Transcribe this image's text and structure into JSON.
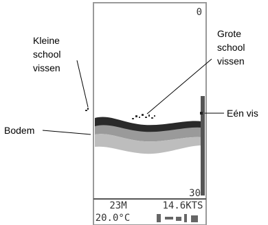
{
  "screen": {
    "depth_top": "0",
    "depth_bottom": "30",
    "status": {
      "depth": "23M",
      "speed": "14.6KTS",
      "temperature": "20.0°C"
    }
  },
  "annotations": {
    "small_school": [
      "Kleine",
      "school",
      "vissen"
    ],
    "large_school": [
      "Grote",
      "school",
      "vissen"
    ],
    "single_fish": "Eén vis",
    "bottom": "Bodem"
  }
}
